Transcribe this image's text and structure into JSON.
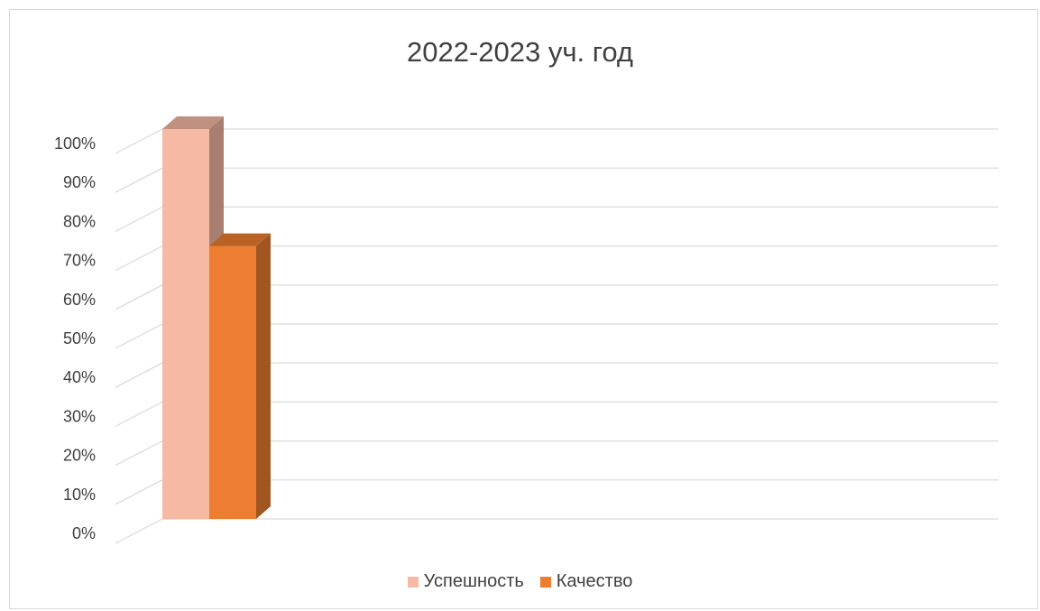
{
  "chart_data": {
    "type": "bar",
    "title": "2022-2023 уч. год",
    "categories": [
      ""
    ],
    "series": [
      {
        "name": "Успешность",
        "values": [
          100
        ],
        "color": "#f6b9a4"
      },
      {
        "name": "Качество",
        "values": [
          70
        ],
        "color": "#ed7d31"
      }
    ],
    "ylim": [
      0,
      100
    ],
    "y_ticks": [
      0,
      10,
      20,
      30,
      40,
      50,
      60,
      70,
      80,
      90,
      100
    ],
    "y_tick_labels": [
      "0%",
      "10%",
      "20%",
      "30%",
      "40%",
      "50%",
      "60%",
      "70%",
      "80%",
      "90%",
      "100%"
    ],
    "grid": true,
    "legend_position": "bottom",
    "style": "3d-column"
  }
}
